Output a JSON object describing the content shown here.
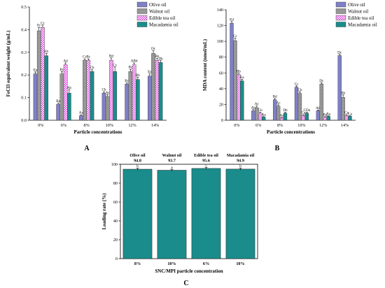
{
  "colors": {
    "olive": "#8080c8",
    "walnut": "#8c8c8c",
    "edible": "#e040e0",
    "macadamia": "#1a8c8c",
    "loading_bar": "#1a8c8c"
  },
  "chart_data": [
    {
      "type": "bar",
      "panel_label": "A",
      "categories": [
        "0%",
        "6%",
        "8%",
        "10%",
        "12%",
        "14%"
      ],
      "xlabel": "Particle concentrations",
      "ylabel": "FeCl3 equivalent weight (g/mL)",
      "ylim": [
        0,
        0.5
      ],
      "yticks": [
        "0.0",
        "0.1",
        "0.2",
        "0.3",
        "0.4",
        "0.5"
      ],
      "legend_position": "top-right",
      "series": [
        {
          "name": "Olive oil",
          "values": [
            0.205,
            0.07,
            0.02,
            0.12,
            0.16,
            0.195
          ],
          "errors": [
            0.008,
            0.006,
            0.004,
            0.006,
            0.005,
            0.01
          ],
          "labels": [
            "Ea",
            "Ba",
            "Aa",
            "Cb",
            "Bc",
            "Ea"
          ]
        },
        {
          "name": "Walnut oil",
          "values": [
            0.395,
            0.205,
            0.265,
            0.105,
            0.215,
            0.295
          ],
          "errors": [
            0.015,
            0.01,
            0.006,
            0.008,
            0.01,
            0.012
          ],
          "labels": [
            "Ec",
            "Bc",
            "Cc",
            "Aa",
            "Bc",
            "Dc"
          ]
        },
        {
          "name": "Edible tea oil",
          "values": [
            0.41,
            0.245,
            0.265,
            0.265,
            0.245,
            0.265
          ],
          "errors": [
            0.01,
            0.008,
            0.006,
            0.01,
            0.008,
            0.008
          ],
          "labels": [
            "Cc",
            "Ad",
            "Bc",
            "Bd",
            "ABd",
            "Bb"
          ]
        },
        {
          "name": "Macadamia oil",
          "values": [
            0.285,
            0.12,
            0.215,
            0.215,
            0.18,
            0.255
          ],
          "errors": [
            0.01,
            0.015,
            0.008,
            0.02,
            0.01,
            0.008
          ],
          "labels": [
            "Eb",
            "Ab",
            "Cb",
            "Cc",
            "Bb",
            "Db"
          ]
        }
      ]
    },
    {
      "type": "bar",
      "panel_label": "B",
      "categories": [
        "0%",
        "6%",
        "8%",
        "10%",
        "12%",
        "14%"
      ],
      "xlabel": "Particle concentrations",
      "ylabel": "MDA content (nmol/mL)",
      "ylim": [
        0,
        140
      ],
      "yticks": [
        "0",
        "20",
        "40",
        "60",
        "80",
        "100",
        "120",
        "140"
      ],
      "legend_position": "top-right",
      "series": [
        {
          "name": "Olive oil",
          "values": [
            123,
            12,
            26,
            42,
            12,
            82
          ],
          "errors": [
            2,
            1.5,
            1.5,
            1.5,
            1,
            1.5
          ],
          "labels": [
            "Ed",
            "Ab",
            "Bd",
            "Cc",
            "Ab",
            "Dc"
          ]
        },
        {
          "name": "Walnut oil",
          "values": [
            101,
            16,
            18,
            34,
            46,
            29
          ],
          "errors": [
            3,
            2,
            1.5,
            2,
            1.5,
            3
          ],
          "labels": [
            "Cc",
            "Ac",
            "Ac",
            "Cb",
            "Dc",
            "Bb"
          ]
        },
        {
          "name": "Edible tea oil",
          "values": [
            58,
            9,
            3,
            6,
            4,
            6
          ],
          "errors": [
            1.5,
            1,
            0.5,
            1,
            0.5,
            1
          ],
          "labels": [
            "Bb",
            "Cb",
            "Aa",
            "Ca",
            "Ba",
            "Ca"
          ]
        },
        {
          "name": "Macadamia oil",
          "values": [
            50,
            4,
            9,
            9,
            5,
            5
          ],
          "errors": [
            2,
            0.5,
            1,
            1,
            0.5,
            0.5
          ],
          "labels": [
            "Ea",
            "Aa",
            "Db",
            "CDa",
            "Ba",
            "Ca"
          ]
        }
      ]
    },
    {
      "type": "bar",
      "panel_label": "C",
      "categories": [
        "8%",
        "10%",
        "6%",
        "10%"
      ],
      "group_names": [
        "Olive oil",
        "Walnut oil",
        "Edible tea oil",
        "Macadamia oil"
      ],
      "values": [
        94.8,
        93.7,
        95.6,
        94.9
      ],
      "value_labels": [
        "94.8",
        "93.7",
        "95.6",
        "94.9"
      ],
      "sig_labels": [
        "b",
        "a",
        "c",
        "b"
      ],
      "errors": [
        1.2,
        1.0,
        1.0,
        1.2
      ],
      "xlabel": "SNC/MPI particle concentration",
      "ylabel": "Loading rate (%)",
      "ylim": [
        0,
        100
      ],
      "yticks": [
        "0",
        "20",
        "40",
        "60",
        "80",
        "100"
      ]
    }
  ]
}
